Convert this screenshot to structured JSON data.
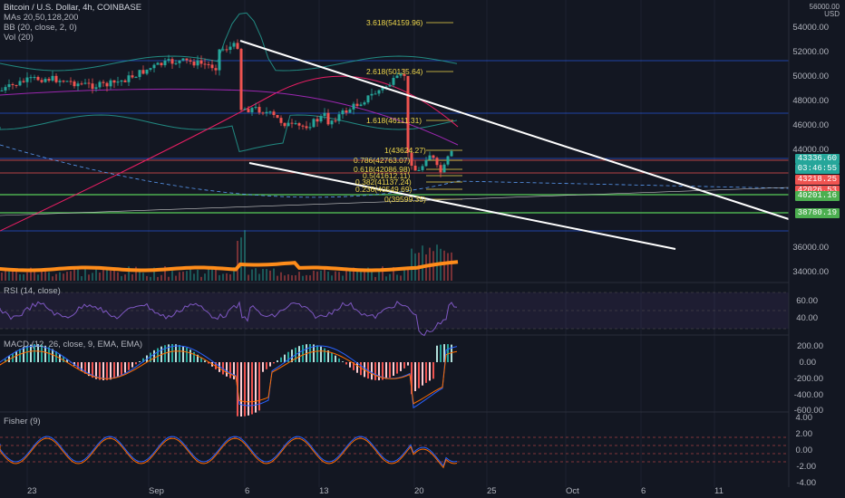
{
  "legend": {
    "title": "Bitcoin / U.S. Dollar, 4h, COINBASE",
    "lines": [
      "MAs 20,50,128,200",
      "BB (20, close, 2, 0)",
      "Vol (20)"
    ]
  },
  "axis": {
    "currency": "USD",
    "top_price": "56000.00",
    "price_ticks": [
      "54000.00",
      "52000.00",
      "50000.00",
      "48000.00",
      "46000.00",
      "44000.00",
      "36000.00",
      "34000.00"
    ],
    "rsi_ticks": [
      "60.00",
      "40.00"
    ],
    "macd_ticks": [
      "200.00",
      "0.00",
      "-200.00",
      "-400.00",
      "-600.00"
    ],
    "fisher_ticks": [
      "4.00",
      "2.00",
      "0.00",
      "-2.00",
      "-4.00"
    ]
  },
  "badges": [
    {
      "label": "43336.60",
      "color": "#26a69a"
    },
    {
      "label": "03:46:55",
      "color": "#26a69a"
    },
    {
      "label": "43218.25",
      "color": "#ef5350"
    },
    {
      "label": "42026.53",
      "color": "#ef5350"
    },
    {
      "label": "40201.16",
      "color": "#4caf50"
    },
    {
      "label": "38780.19",
      "color": "#4caf50"
    }
  ],
  "fib": [
    {
      "label": "3.618(54159.96)"
    },
    {
      "label": "2.618(50135.64)"
    },
    {
      "label": "1.618(46111.31)"
    },
    {
      "label": "1(43624.27)"
    },
    {
      "label": "0.786(42763.07)"
    },
    {
      "label": "0.618(42086.98)"
    },
    {
      "label": "0.5(41612.11)"
    },
    {
      "label": "0.382(41137.24)"
    },
    {
      "label": "0.236(40549.69)"
    },
    {
      "label": "0(39599.35)"
    }
  ],
  "panes": {
    "rsi": "RSI (14, close)",
    "macd": "MACD (12, 26, close, 9, EMA, EMA)",
    "fisher": "Fisher (9)"
  },
  "dates": [
    "23",
    "Sep",
    "6",
    "13",
    "20",
    "25",
    "Oct",
    "6",
    "11"
  ],
  "colors": {
    "bg": "#131722",
    "up": "#26a69a",
    "down": "#ef5350",
    "fib": "#f0d84b",
    "trend": "#ffffff",
    "volume_ma": "#ff8c1a",
    "rsi": "#7e57c2"
  }
}
